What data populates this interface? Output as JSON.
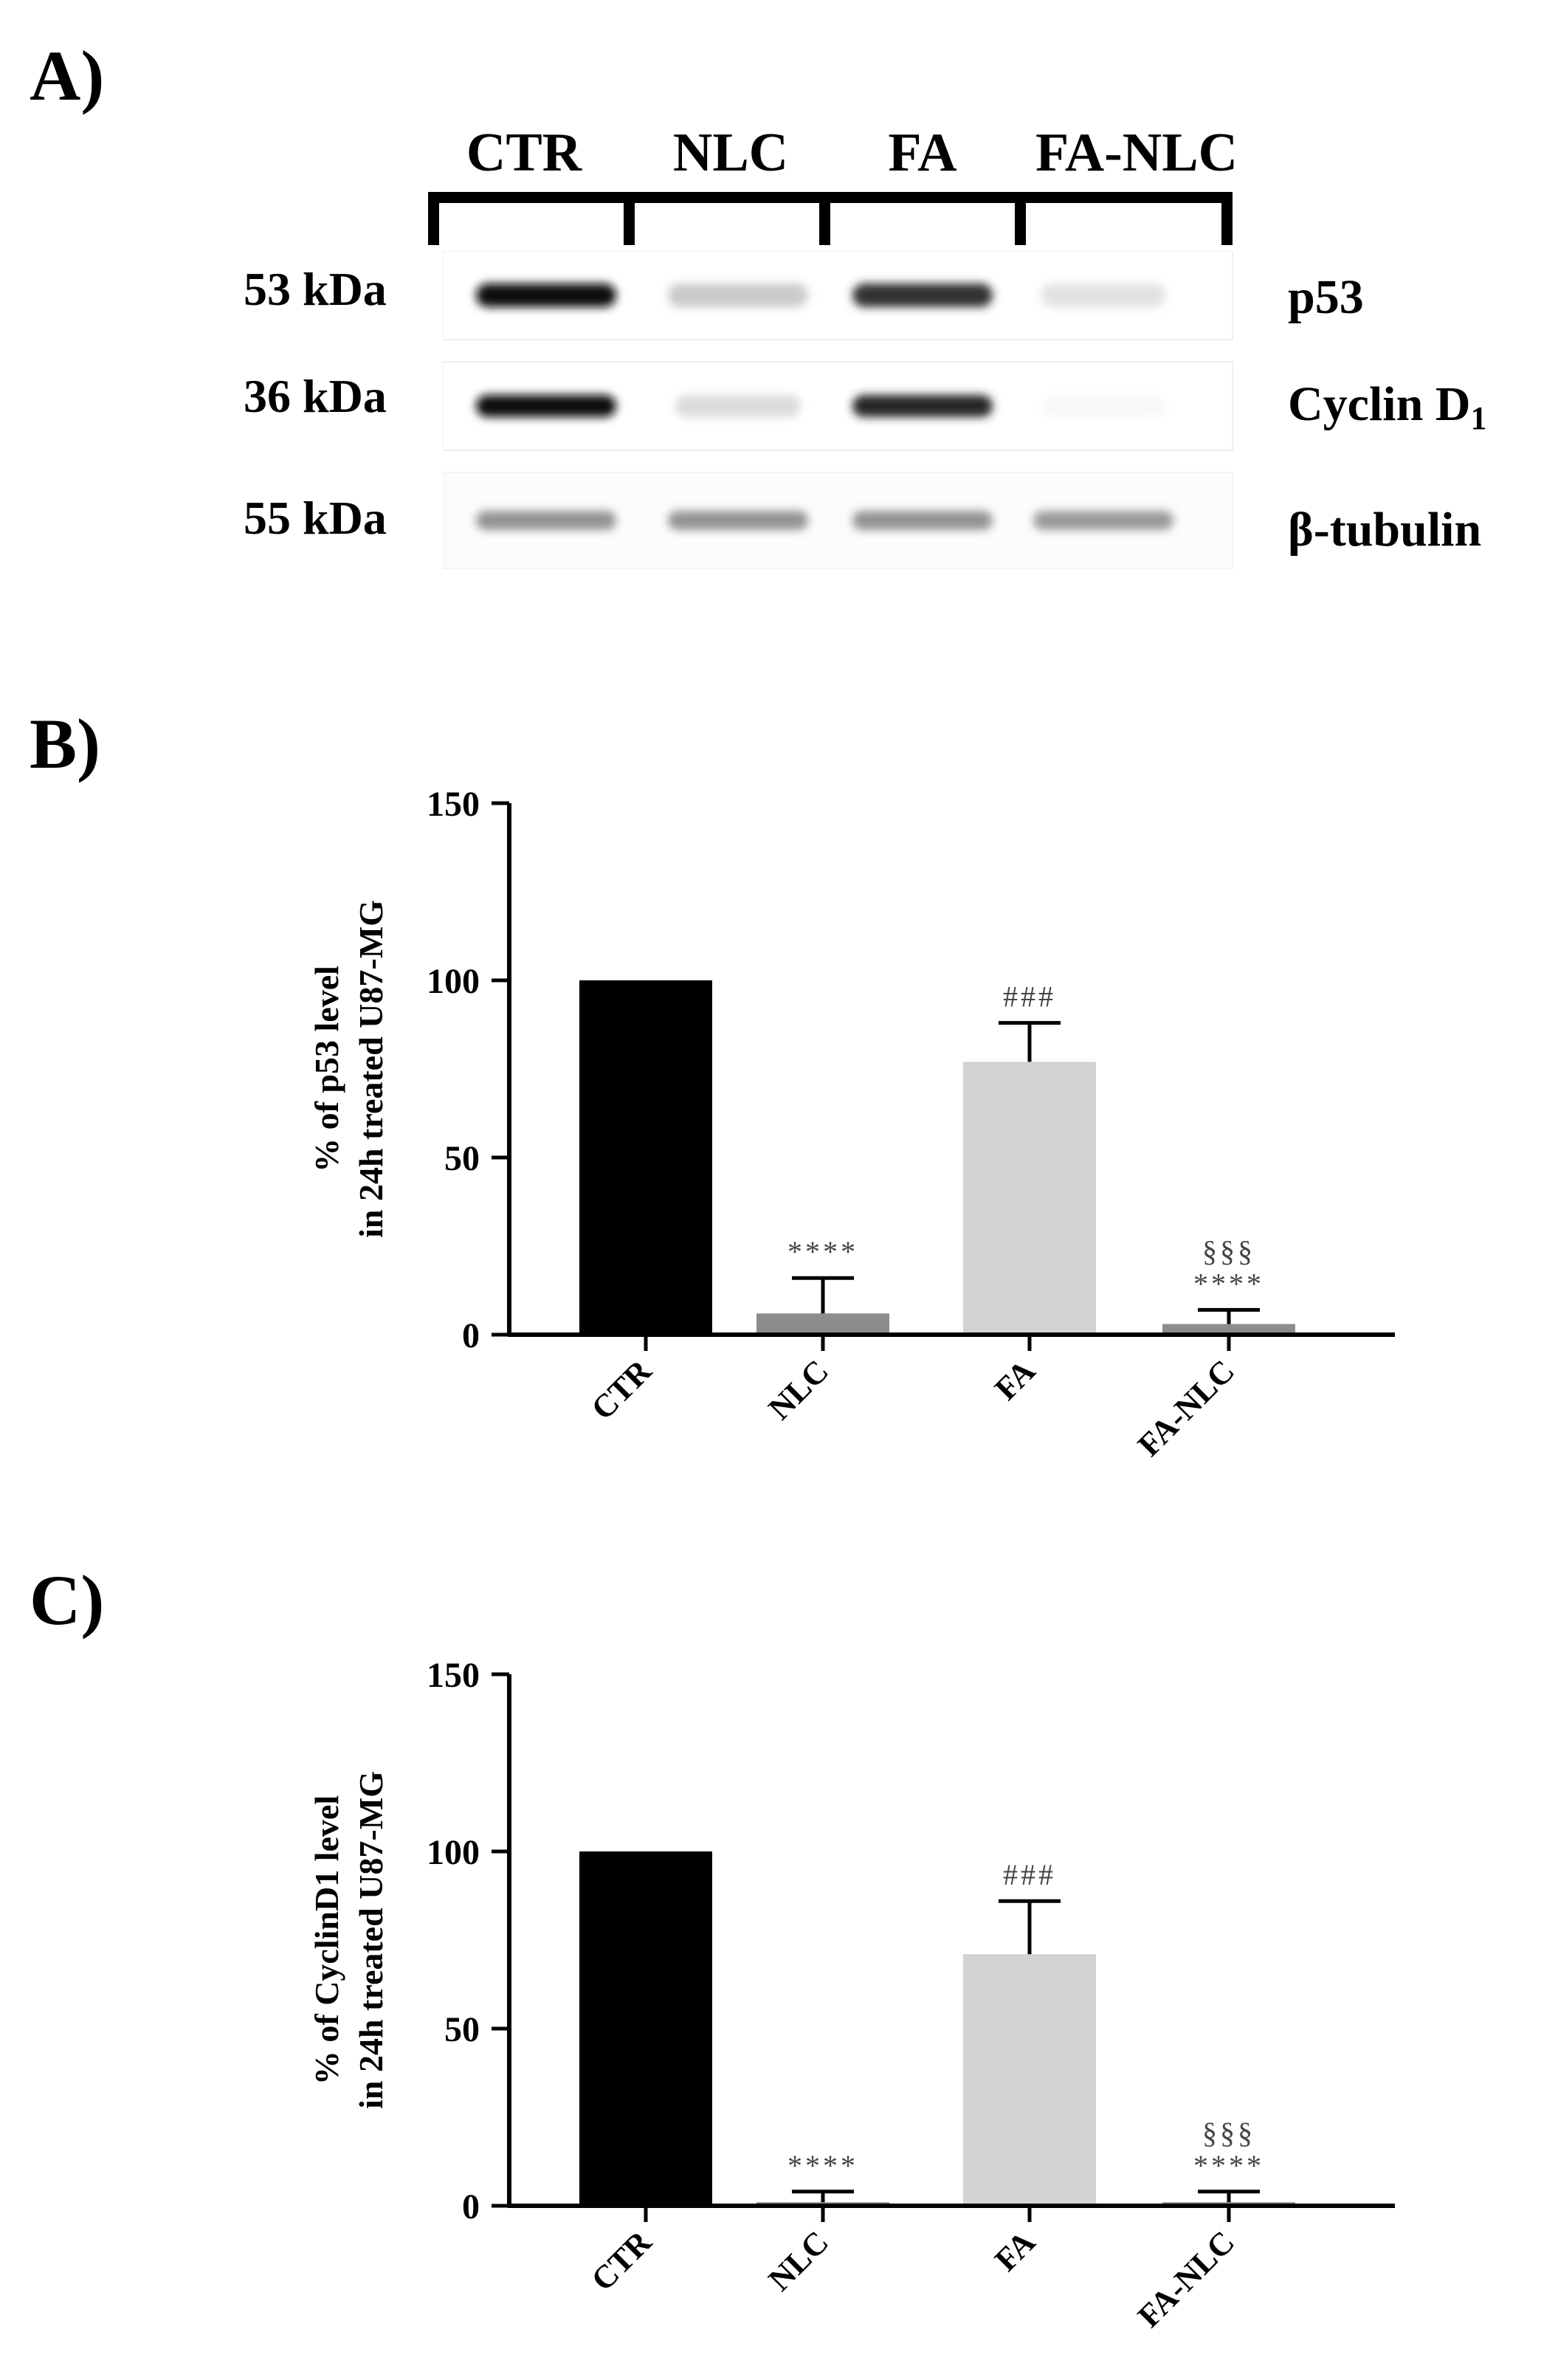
{
  "panel_a": {
    "letter": "A)",
    "lanes": [
      "CTR",
      "NLC",
      "FA",
      "FA-NLC"
    ],
    "rows": [
      {
        "mw": "53 kDa",
        "protein": "p53",
        "sub": "",
        "intensity": [
          1.0,
          0.22,
          0.85,
          0.12
        ]
      },
      {
        "mw": "36 kDa",
        "protein": "Cyclin D",
        "sub": "1",
        "intensity": [
          1.0,
          0.15,
          0.9,
          0.03
        ]
      },
      {
        "mw": "55 kDa",
        "protein": "β-tubulin",
        "sub": "",
        "intensity": [
          0.45,
          0.45,
          0.45,
          0.42
        ]
      }
    ]
  },
  "panel_b": {
    "letter": "B)"
  },
  "panel_c": {
    "letter": "C)"
  },
  "chart_data": [
    {
      "type": "bar",
      "ylabel_line1": "% of p53 level",
      "ylabel_line2": "in 24h treated U87-MG",
      "categories": [
        "CTR",
        "NLC",
        "FA",
        "FA-NLC"
      ],
      "values": [
        100,
        6,
        77,
        3
      ],
      "errors": [
        0,
        10,
        11,
        4
      ],
      "colors": [
        "#000000",
        "#8c8c8c",
        "#d3d3d3",
        "#8c8c8c"
      ],
      "annotations": [
        [],
        [
          "****"
        ],
        [
          "###"
        ],
        [
          "§§§",
          "****"
        ]
      ],
      "ylim": [
        0,
        150
      ],
      "yticks": [
        0,
        50,
        100,
        150
      ]
    },
    {
      "type": "bar",
      "ylabel_line1": "% of CyclinD1 level",
      "ylabel_line2": "in 24h treated U87-MG",
      "categories": [
        "CTR",
        "NLC",
        "FA",
        "FA-NLC"
      ],
      "values": [
        100,
        1,
        71,
        1
      ],
      "errors": [
        0,
        3,
        15,
        3
      ],
      "colors": [
        "#000000",
        "#8c8c8c",
        "#d3d3d3",
        "#8c8c8c"
      ],
      "annotations": [
        [],
        [
          "****"
        ],
        [
          "###"
        ],
        [
          "§§§",
          "****"
        ]
      ],
      "ylim": [
        0,
        150
      ],
      "yticks": [
        0,
        50,
        100,
        150
      ]
    }
  ]
}
